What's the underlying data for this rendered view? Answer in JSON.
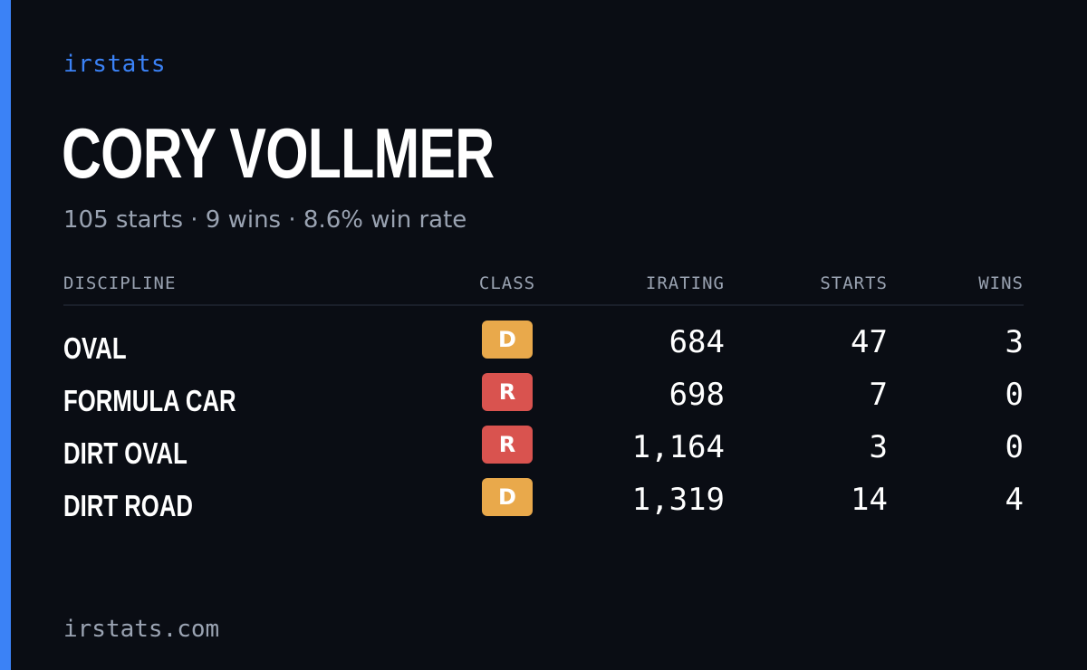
{
  "brand": "irstats",
  "driver": {
    "name": "CORY VOLLMER",
    "summary": "105 starts · 9 wins · 8.6% win rate"
  },
  "table": {
    "headers": {
      "discipline": "DISCIPLINE",
      "class": "CLASS",
      "irating": "IRATING",
      "starts": "STARTS",
      "wins": "WINS"
    },
    "rows": [
      {
        "discipline": "OVAL",
        "class": "D",
        "class_color": "#e9a94b",
        "irating": "684",
        "starts": "47",
        "wins": "3"
      },
      {
        "discipline": "FORMULA CAR",
        "class": "R",
        "class_color": "#d9534f",
        "irating": "698",
        "starts": "7",
        "wins": "0"
      },
      {
        "discipline": "DIRT OVAL",
        "class": "R",
        "class_color": "#d9534f",
        "irating": "1,164",
        "starts": "3",
        "wins": "0"
      },
      {
        "discipline": "DIRT ROAD",
        "class": "D",
        "class_color": "#e9a94b",
        "irating": "1,319",
        "starts": "14",
        "wins": "4"
      }
    ]
  },
  "footer": "irstats.com",
  "colors": {
    "accent": "#3b82f6",
    "background": "#0a0d14",
    "muted": "#9aa3b2"
  }
}
